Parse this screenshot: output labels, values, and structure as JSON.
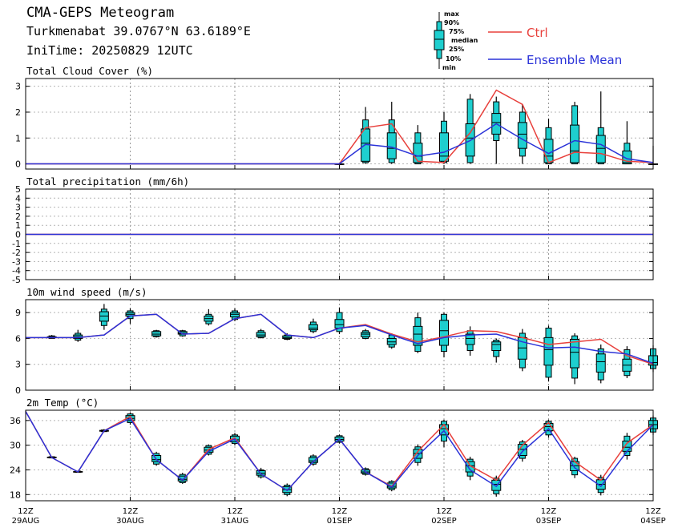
{
  "header": {
    "title": "CMA-GEPS Meteogram",
    "location": "Turkmenabat 39.0767°N 63.6189°E",
    "init_time": "IniTime: 20250829 12UTC"
  },
  "legend": {
    "ctrl": "Ctrl",
    "mean": "Ensemble Mean",
    "ctrl_color": "#e8403c",
    "mean_color": "#2a32d8",
    "box_color": "#1ecfcf",
    "box_labels": {
      "max": "max",
      "p90": "90%",
      "p75": "75%",
      "median": "median",
      "p25": "25%",
      "p10": "10%",
      "min": "min"
    }
  },
  "chart_data": [
    {
      "type": "box",
      "title": "Total Cloud Cover (%)",
      "x_hours": [
        0,
        6,
        12,
        18,
        24,
        30,
        36,
        42,
        48,
        54,
        60,
        66,
        72,
        78,
        84,
        90,
        96,
        102,
        108,
        114,
        120,
        126,
        132,
        138,
        144
      ],
      "ylim": [
        -0.2,
        3.3
      ],
      "yticks": [
        0,
        1,
        2,
        3
      ],
      "ctrl": [
        0,
        0,
        0,
        0,
        0,
        0,
        0,
        0,
        0,
        0,
        0,
        0,
        0,
        1.4,
        1.55,
        0.1,
        0.05,
        1.2,
        2.85,
        2.3,
        0.05,
        0.45,
        0.4,
        0.1,
        0.05
      ],
      "mean": [
        0,
        0,
        0,
        0,
        0,
        0,
        0,
        0,
        0,
        0,
        0,
        0,
        0,
        0.75,
        0.65,
        0.3,
        0.45,
        0.9,
        1.55,
        0.95,
        0.4,
        0.9,
        0.75,
        0.2,
        0.05
      ],
      "boxes": [
        {
          "h": 72,
          "min": 0,
          "p10": 0,
          "p25": 0,
          "median": 0,
          "p75": 0,
          "p90": 0,
          "max": 0.05
        },
        {
          "h": 78,
          "min": 0,
          "p10": 0.05,
          "p25": 0.1,
          "median": 0.8,
          "p75": 1.35,
          "p90": 1.7,
          "max": 2.2
        },
        {
          "h": 84,
          "min": 0,
          "p10": 0.05,
          "p25": 0.2,
          "median": 0.6,
          "p75": 1.2,
          "p90": 1.7,
          "max": 2.4
        },
        {
          "h": 90,
          "min": 0,
          "p10": 0,
          "p25": 0.05,
          "median": 0.3,
          "p75": 0.8,
          "p90": 1.2,
          "max": 1.5
        },
        {
          "h": 96,
          "min": 0,
          "p10": 0.05,
          "p25": 0.1,
          "median": 0.3,
          "p75": 1.2,
          "p90": 1.65,
          "max": 2.0
        },
        {
          "h": 102,
          "min": 0,
          "p10": 0.05,
          "p25": 0.3,
          "median": 1.0,
          "p75": 1.55,
          "p90": 2.5,
          "max": 2.7
        },
        {
          "h": 108,
          "min": 0,
          "p10": 0.9,
          "p25": 1.15,
          "median": 1.6,
          "p75": 1.95,
          "p90": 2.4,
          "max": 2.6
        },
        {
          "h": 114,
          "min": 0,
          "p10": 0.3,
          "p25": 0.6,
          "median": 1.15,
          "p75": 1.6,
          "p90": 2.0,
          "max": 2.3
        },
        {
          "h": 120,
          "min": 0,
          "p10": 0,
          "p25": 0.05,
          "median": 0.3,
          "p75": 0.95,
          "p90": 1.4,
          "max": 1.75
        },
        {
          "h": 126,
          "min": 0,
          "p10": 0,
          "p25": 0.05,
          "median": 0.5,
          "p75": 1.5,
          "p90": 2.25,
          "max": 2.4
        },
        {
          "h": 132,
          "min": 0,
          "p10": 0,
          "p25": 0.05,
          "median": 0.6,
          "p75": 1.1,
          "p90": 1.4,
          "max": 2.8
        },
        {
          "h": 138,
          "min": 0,
          "p10": 0,
          "p25": 0,
          "median": 0.05,
          "p75": 0.5,
          "p90": 0.8,
          "max": 1.65
        },
        {
          "h": 144,
          "min": 0,
          "p10": 0,
          "p25": 0,
          "median": 0,
          "p75": 0,
          "p90": 0,
          "max": 0.7
        }
      ]
    },
    {
      "type": "line",
      "title": "Total precipitation (mm/6h)",
      "x_hours": [
        0,
        144
      ],
      "ylim": [
        -5,
        5
      ],
      "yticks": [
        -5,
        -4,
        -3,
        -2,
        -1,
        0,
        1,
        2,
        3,
        4,
        5
      ],
      "ctrl": [
        0,
        0
      ],
      "mean": [
        0,
        0
      ]
    },
    {
      "type": "box",
      "title": "10m wind speed (m/s)",
      "x_hours": [
        0,
        6,
        12,
        18,
        24,
        30,
        36,
        42,
        48,
        54,
        60,
        66,
        72,
        78,
        84,
        90,
        96,
        102,
        108,
        114,
        120,
        126,
        132,
        138,
        144
      ],
      "ylim": [
        0,
        10.5
      ],
      "yticks": [
        0,
        3,
        6,
        9
      ],
      "ctrl": [
        6.1,
        6.1,
        6.1,
        6.4,
        8.6,
        8.8,
        6.5,
        6.6,
        8.3,
        8.8,
        6.4,
        6.1,
        7.2,
        7.6,
        6.5,
        5.6,
        6.2,
        6.9,
        6.8,
        6.1,
        5.3,
        5.6,
        5.9,
        4.0,
        3.0
      ],
      "mean": [
        6.1,
        6.1,
        6.1,
        6.4,
        8.6,
        8.8,
        6.5,
        6.6,
        8.3,
        8.8,
        6.4,
        6.1,
        7.2,
        7.5,
        6.4,
        5.4,
        6.1,
        6.4,
        6.5,
        5.6,
        4.9,
        5.0,
        4.5,
        4.2,
        3.1
      ],
      "boxes": [
        {
          "h": 6,
          "min": 6.0,
          "p10": 6.0,
          "p25": 6.1,
          "median": 6.1,
          "p75": 6.2,
          "p90": 6.3,
          "max": 6.4
        },
        {
          "h": 12,
          "min": 5.6,
          "p10": 5.8,
          "p25": 6.0,
          "median": 6.2,
          "p75": 6.4,
          "p90": 6.6,
          "max": 7.0
        },
        {
          "h": 18,
          "min": 7.0,
          "p10": 7.5,
          "p25": 8.0,
          "median": 8.6,
          "p75": 9.1,
          "p90": 9.4,
          "max": 10.0
        },
        {
          "h": 24,
          "min": 7.7,
          "p10": 8.3,
          "p25": 8.6,
          "median": 8.8,
          "p75": 9.0,
          "p90": 9.2,
          "max": 9.5
        },
        {
          "h": 30,
          "min": 6.1,
          "p10": 6.2,
          "p25": 6.3,
          "median": 6.5,
          "p75": 6.8,
          "p90": 6.9,
          "max": 7.0
        },
        {
          "h": 36,
          "min": 6.2,
          "p10": 6.3,
          "p25": 6.5,
          "median": 6.6,
          "p75": 6.8,
          "p90": 6.9,
          "max": 7.0
        },
        {
          "h": 42,
          "min": 7.5,
          "p10": 7.7,
          "p25": 8.0,
          "median": 8.3,
          "p75": 8.6,
          "p90": 8.8,
          "max": 9.4
        },
        {
          "h": 48,
          "min": 8.0,
          "p10": 8.2,
          "p25": 8.5,
          "median": 8.8,
          "p75": 9.0,
          "p90": 9.2,
          "max": 9.5
        },
        {
          "h": 54,
          "min": 6.0,
          "p10": 6.1,
          "p25": 6.2,
          "median": 6.4,
          "p75": 6.7,
          "p90": 6.9,
          "max": 7.1
        },
        {
          "h": 60,
          "min": 5.8,
          "p10": 5.9,
          "p25": 6.0,
          "median": 6.1,
          "p75": 6.3,
          "p90": 6.4,
          "max": 6.6
        },
        {
          "h": 66,
          "min": 6.6,
          "p10": 6.8,
          "p25": 7.0,
          "median": 7.2,
          "p75": 7.6,
          "p90": 7.9,
          "max": 8.3
        },
        {
          "h": 72,
          "min": 6.5,
          "p10": 6.8,
          "p25": 7.2,
          "median": 7.6,
          "p75": 8.2,
          "p90": 9.0,
          "max": 9.6
        },
        {
          "h": 78,
          "min": 5.9,
          "p10": 6.0,
          "p25": 6.2,
          "median": 6.5,
          "p75": 6.7,
          "p90": 6.9,
          "max": 7.1
        },
        {
          "h": 84,
          "min": 4.8,
          "p10": 5.0,
          "p25": 5.3,
          "median": 5.6,
          "p75": 6.0,
          "p90": 6.4,
          "max": 6.6
        },
        {
          "h": 90,
          "min": 4.3,
          "p10": 4.5,
          "p25": 5.2,
          "median": 6.5,
          "p75": 7.4,
          "p90": 8.4,
          "max": 9.0
        },
        {
          "h": 96,
          "min": 3.8,
          "p10": 4.5,
          "p25": 5.2,
          "median": 6.9,
          "p75": 8.1,
          "p90": 8.8,
          "max": 9.0
        },
        {
          "h": 102,
          "min": 4.0,
          "p10": 4.6,
          "p25": 5.3,
          "median": 6.0,
          "p75": 6.5,
          "p90": 6.9,
          "max": 7.4
        },
        {
          "h": 108,
          "min": 3.2,
          "p10": 3.9,
          "p25": 4.6,
          "median": 5.3,
          "p75": 5.6,
          "p90": 5.8,
          "max": 6.0
        },
        {
          "h": 114,
          "min": 2.2,
          "p10": 2.6,
          "p25": 3.6,
          "median": 4.9,
          "p75": 6.1,
          "p90": 6.6,
          "max": 7.1
        },
        {
          "h": 120,
          "min": 1.0,
          "p10": 1.5,
          "p25": 2.9,
          "median": 4.7,
          "p75": 6.1,
          "p90": 7.2,
          "max": 7.5
        },
        {
          "h": 126,
          "min": 0.7,
          "p10": 1.4,
          "p25": 2.6,
          "median": 4.4,
          "p75": 5.9,
          "p90": 6.3,
          "max": 6.6
        },
        {
          "h": 132,
          "min": 0.8,
          "p10": 1.2,
          "p25": 2.1,
          "median": 3.3,
          "p75": 4.2,
          "p90": 4.8,
          "max": 5.3
        },
        {
          "h": 138,
          "min": 1.4,
          "p10": 1.7,
          "p25": 2.2,
          "median": 2.9,
          "p75": 3.6,
          "p90": 4.7,
          "max": 5.1
        },
        {
          "h": 144,
          "min": 2.1,
          "p10": 2.5,
          "p25": 2.9,
          "median": 3.2,
          "p75": 4.0,
          "p90": 4.8,
          "max": 5.2
        }
      ]
    },
    {
      "type": "box",
      "title": "2m Temp (°C)",
      "x_hours": [
        0,
        6,
        12,
        18,
        24,
        30,
        36,
        42,
        48,
        54,
        60,
        66,
        72,
        78,
        84,
        90,
        96,
        102,
        108,
        114,
        120,
        126,
        132,
        138,
        144
      ],
      "ylim": [
        16.5,
        38.5
      ],
      "yticks": [
        18,
        24,
        30,
        36
      ],
      "ctrl": [
        38.2,
        27.0,
        23.5,
        33.5,
        37.0,
        26.5,
        21.5,
        29.0,
        31.8,
        23.0,
        19.0,
        26.0,
        31.5,
        23.5,
        20.0,
        28.5,
        35.0,
        25.0,
        21.5,
        30.0,
        35.5,
        26.0,
        21.5,
        30.5,
        35.0
      ],
      "mean": [
        38.2,
        27.0,
        23.5,
        33.5,
        36.5,
        26.5,
        21.5,
        28.5,
        31.5,
        23.0,
        19.0,
        26.0,
        31.5,
        23.5,
        19.8,
        27.5,
        33.5,
        24.0,
        20.0,
        28.5,
        34.0,
        24.5,
        20.0,
        28.5,
        35.0
      ],
      "boxes": [
        {
          "h": 6,
          "min": 26.8,
          "p10": 26.9,
          "p25": 27.0,
          "median": 27.0,
          "p75": 27.1,
          "p90": 27.2,
          "max": 27.3
        },
        {
          "h": 12,
          "min": 23.3,
          "p10": 23.4,
          "p25": 23.5,
          "median": 23.5,
          "p75": 23.6,
          "p90": 23.7,
          "max": 23.8
        },
        {
          "h": 18,
          "min": 33.2,
          "p10": 33.3,
          "p25": 33.4,
          "median": 33.5,
          "p75": 33.6,
          "p90": 33.7,
          "max": 33.9
        },
        {
          "h": 24,
          "min": 35.0,
          "p10": 35.5,
          "p25": 36.0,
          "median": 36.5,
          "p75": 37.2,
          "p90": 37.6,
          "max": 38.0
        },
        {
          "h": 30,
          "min": 25.0,
          "p10": 25.4,
          "p25": 26.0,
          "median": 26.5,
          "p75": 27.5,
          "p90": 28.0,
          "max": 28.4
        },
        {
          "h": 36,
          "min": 20.6,
          "p10": 20.9,
          "p25": 21.3,
          "median": 21.7,
          "p75": 22.5,
          "p90": 22.9,
          "max": 23.3
        },
        {
          "h": 42,
          "min": 27.5,
          "p10": 27.8,
          "p25": 28.3,
          "median": 28.8,
          "p75": 29.5,
          "p90": 29.9,
          "max": 30.2
        },
        {
          "h": 48,
          "min": 30.0,
          "p10": 30.4,
          "p25": 30.8,
          "median": 31.3,
          "p75": 32.2,
          "p90": 32.5,
          "max": 33.0
        },
        {
          "h": 54,
          "min": 21.9,
          "p10": 22.3,
          "p25": 22.7,
          "median": 23.2,
          "p75": 23.8,
          "p90": 24.0,
          "max": 24.5
        },
        {
          "h": 60,
          "min": 17.6,
          "p10": 18.0,
          "p25": 18.5,
          "median": 19.2,
          "p75": 19.9,
          "p90": 20.3,
          "max": 20.7
        },
        {
          "h": 66,
          "min": 25.0,
          "p10": 25.4,
          "p25": 25.8,
          "median": 26.2,
          "p75": 27.0,
          "p90": 27.4,
          "max": 27.8
        },
        {
          "h": 72,
          "min": 30.4,
          "p10": 30.7,
          "p25": 31.0,
          "median": 31.4,
          "p75": 32.0,
          "p90": 32.3,
          "max": 32.6
        },
        {
          "h": 78,
          "min": 22.6,
          "p10": 22.9,
          "p25": 23.2,
          "median": 23.5,
          "p75": 24.0,
          "p90": 24.3,
          "max": 24.6
        },
        {
          "h": 84,
          "min": 18.8,
          "p10": 19.2,
          "p25": 19.6,
          "median": 20.0,
          "p75": 20.8,
          "p90": 21.2,
          "max": 21.5
        },
        {
          "h": 90,
          "min": 25.0,
          "p10": 25.8,
          "p25": 26.8,
          "median": 28.0,
          "p75": 29.0,
          "p90": 29.6,
          "max": 30.2
        },
        {
          "h": 96,
          "min": 29.5,
          "p10": 31.0,
          "p25": 32.5,
          "median": 34.0,
          "p75": 35.0,
          "p90": 35.8,
          "max": 36.2
        },
        {
          "h": 102,
          "min": 21.5,
          "p10": 22.5,
          "p25": 23.5,
          "median": 25.0,
          "p75": 26.0,
          "p90": 26.6,
          "max": 27.2
        },
        {
          "h": 108,
          "min": 17.5,
          "p10": 18.2,
          "p25": 19.0,
          "median": 20.5,
          "p75": 21.5,
          "p90": 22.0,
          "max": 22.6
        },
        {
          "h": 114,
          "min": 26.0,
          "p10": 26.8,
          "p25": 27.5,
          "median": 29.0,
          "p75": 30.2,
          "p90": 30.8,
          "max": 31.3
        },
        {
          "h": 120,
          "min": 31.8,
          "p10": 32.5,
          "p25": 33.5,
          "median": 34.5,
          "p75": 35.3,
          "p90": 35.8,
          "max": 36.2
        },
        {
          "h": 126,
          "min": 22.0,
          "p10": 22.8,
          "p25": 23.8,
          "median": 25.0,
          "p75": 26.0,
          "p90": 26.8,
          "max": 27.2
        },
        {
          "h": 132,
          "min": 17.8,
          "p10": 18.5,
          "p25": 19.3,
          "median": 20.5,
          "p75": 21.6,
          "p90": 22.2,
          "max": 22.8
        },
        {
          "h": 138,
          "min": 26.5,
          "p10": 27.5,
          "p25": 28.5,
          "median": 29.5,
          "p75": 31.0,
          "p90": 32.2,
          "max": 33.0
        },
        {
          "h": 144,
          "min": 32.5,
          "p10": 33.2,
          "p25": 34.0,
          "median": 35.0,
          "p75": 36.0,
          "p90": 36.6,
          "max": 37.2
        }
      ]
    }
  ],
  "x_axis": {
    "ticks": [
      {
        "h": 0,
        "top": "12Z",
        "bottom": "29AUG"
      },
      {
        "h": 24,
        "top": "12Z",
        "bottom": "30AUG"
      },
      {
        "h": 48,
        "top": "12Z",
        "bottom": "31AUG"
      },
      {
        "h": 72,
        "top": "12Z",
        "bottom": "01SEP"
      },
      {
        "h": 96,
        "top": "12Z",
        "bottom": "02SEP"
      },
      {
        "h": 120,
        "top": "12Z",
        "bottom": "03SEP"
      },
      {
        "h": 144,
        "top": "12Z",
        "bottom": "04SEP"
      }
    ]
  }
}
